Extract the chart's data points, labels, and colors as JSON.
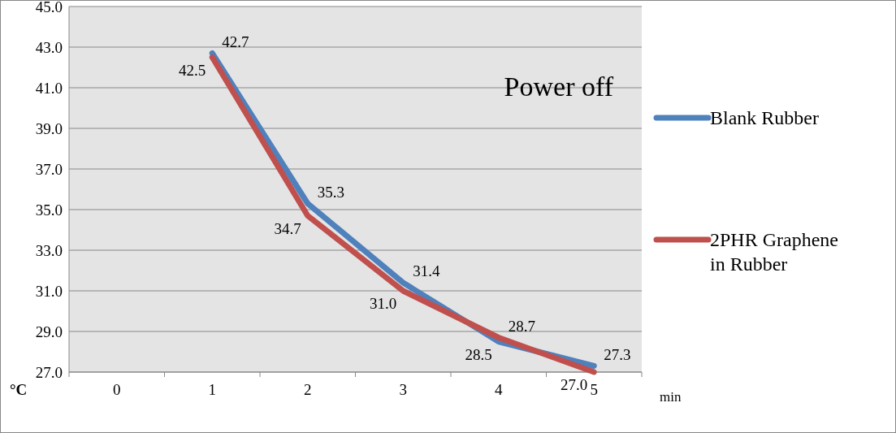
{
  "chart_data": {
    "type": "line",
    "categories": [
      "0",
      "1",
      "2",
      "3",
      "4",
      "5"
    ],
    "series": [
      {
        "name": "Blank Rubber",
        "color": "#4f81bd",
        "values": [
          null,
          42.7,
          35.3,
          31.4,
          28.5,
          27.3
        ],
        "value_labels": [
          null,
          "42.7",
          "35.3",
          "31.4",
          "28.5",
          "27.3"
        ]
      },
      {
        "name": "2PHR Graphene in Rubber",
        "color": "#c0504d",
        "values": [
          null,
          42.5,
          34.7,
          31.0,
          28.7,
          27.0
        ],
        "value_labels": [
          null,
          "42.5",
          "34.7",
          "31.0",
          "28.7",
          "27.0"
        ]
      }
    ],
    "ylim": [
      27,
      45
    ],
    "yticks": [
      {
        "value": 27,
        "label": "27.0"
      },
      {
        "value": 29,
        "label": "29.0"
      },
      {
        "value": 31,
        "label": "31.0"
      },
      {
        "value": 33,
        "label": "33.0"
      },
      {
        "value": 35,
        "label": "35.0"
      },
      {
        "value": 37,
        "label": "37.0"
      },
      {
        "value": 39,
        "label": "39.0"
      },
      {
        "value": 41,
        "label": "41.0"
      },
      {
        "value": 43,
        "label": "43.0"
      },
      {
        "value": 45,
        "label": "45.0"
      }
    ],
    "ylabel": "°C",
    "xlabel": "min",
    "annotations": [
      "Power off"
    ],
    "grid": "y",
    "legend": "right",
    "marker": "none",
    "line_style": "solid"
  }
}
